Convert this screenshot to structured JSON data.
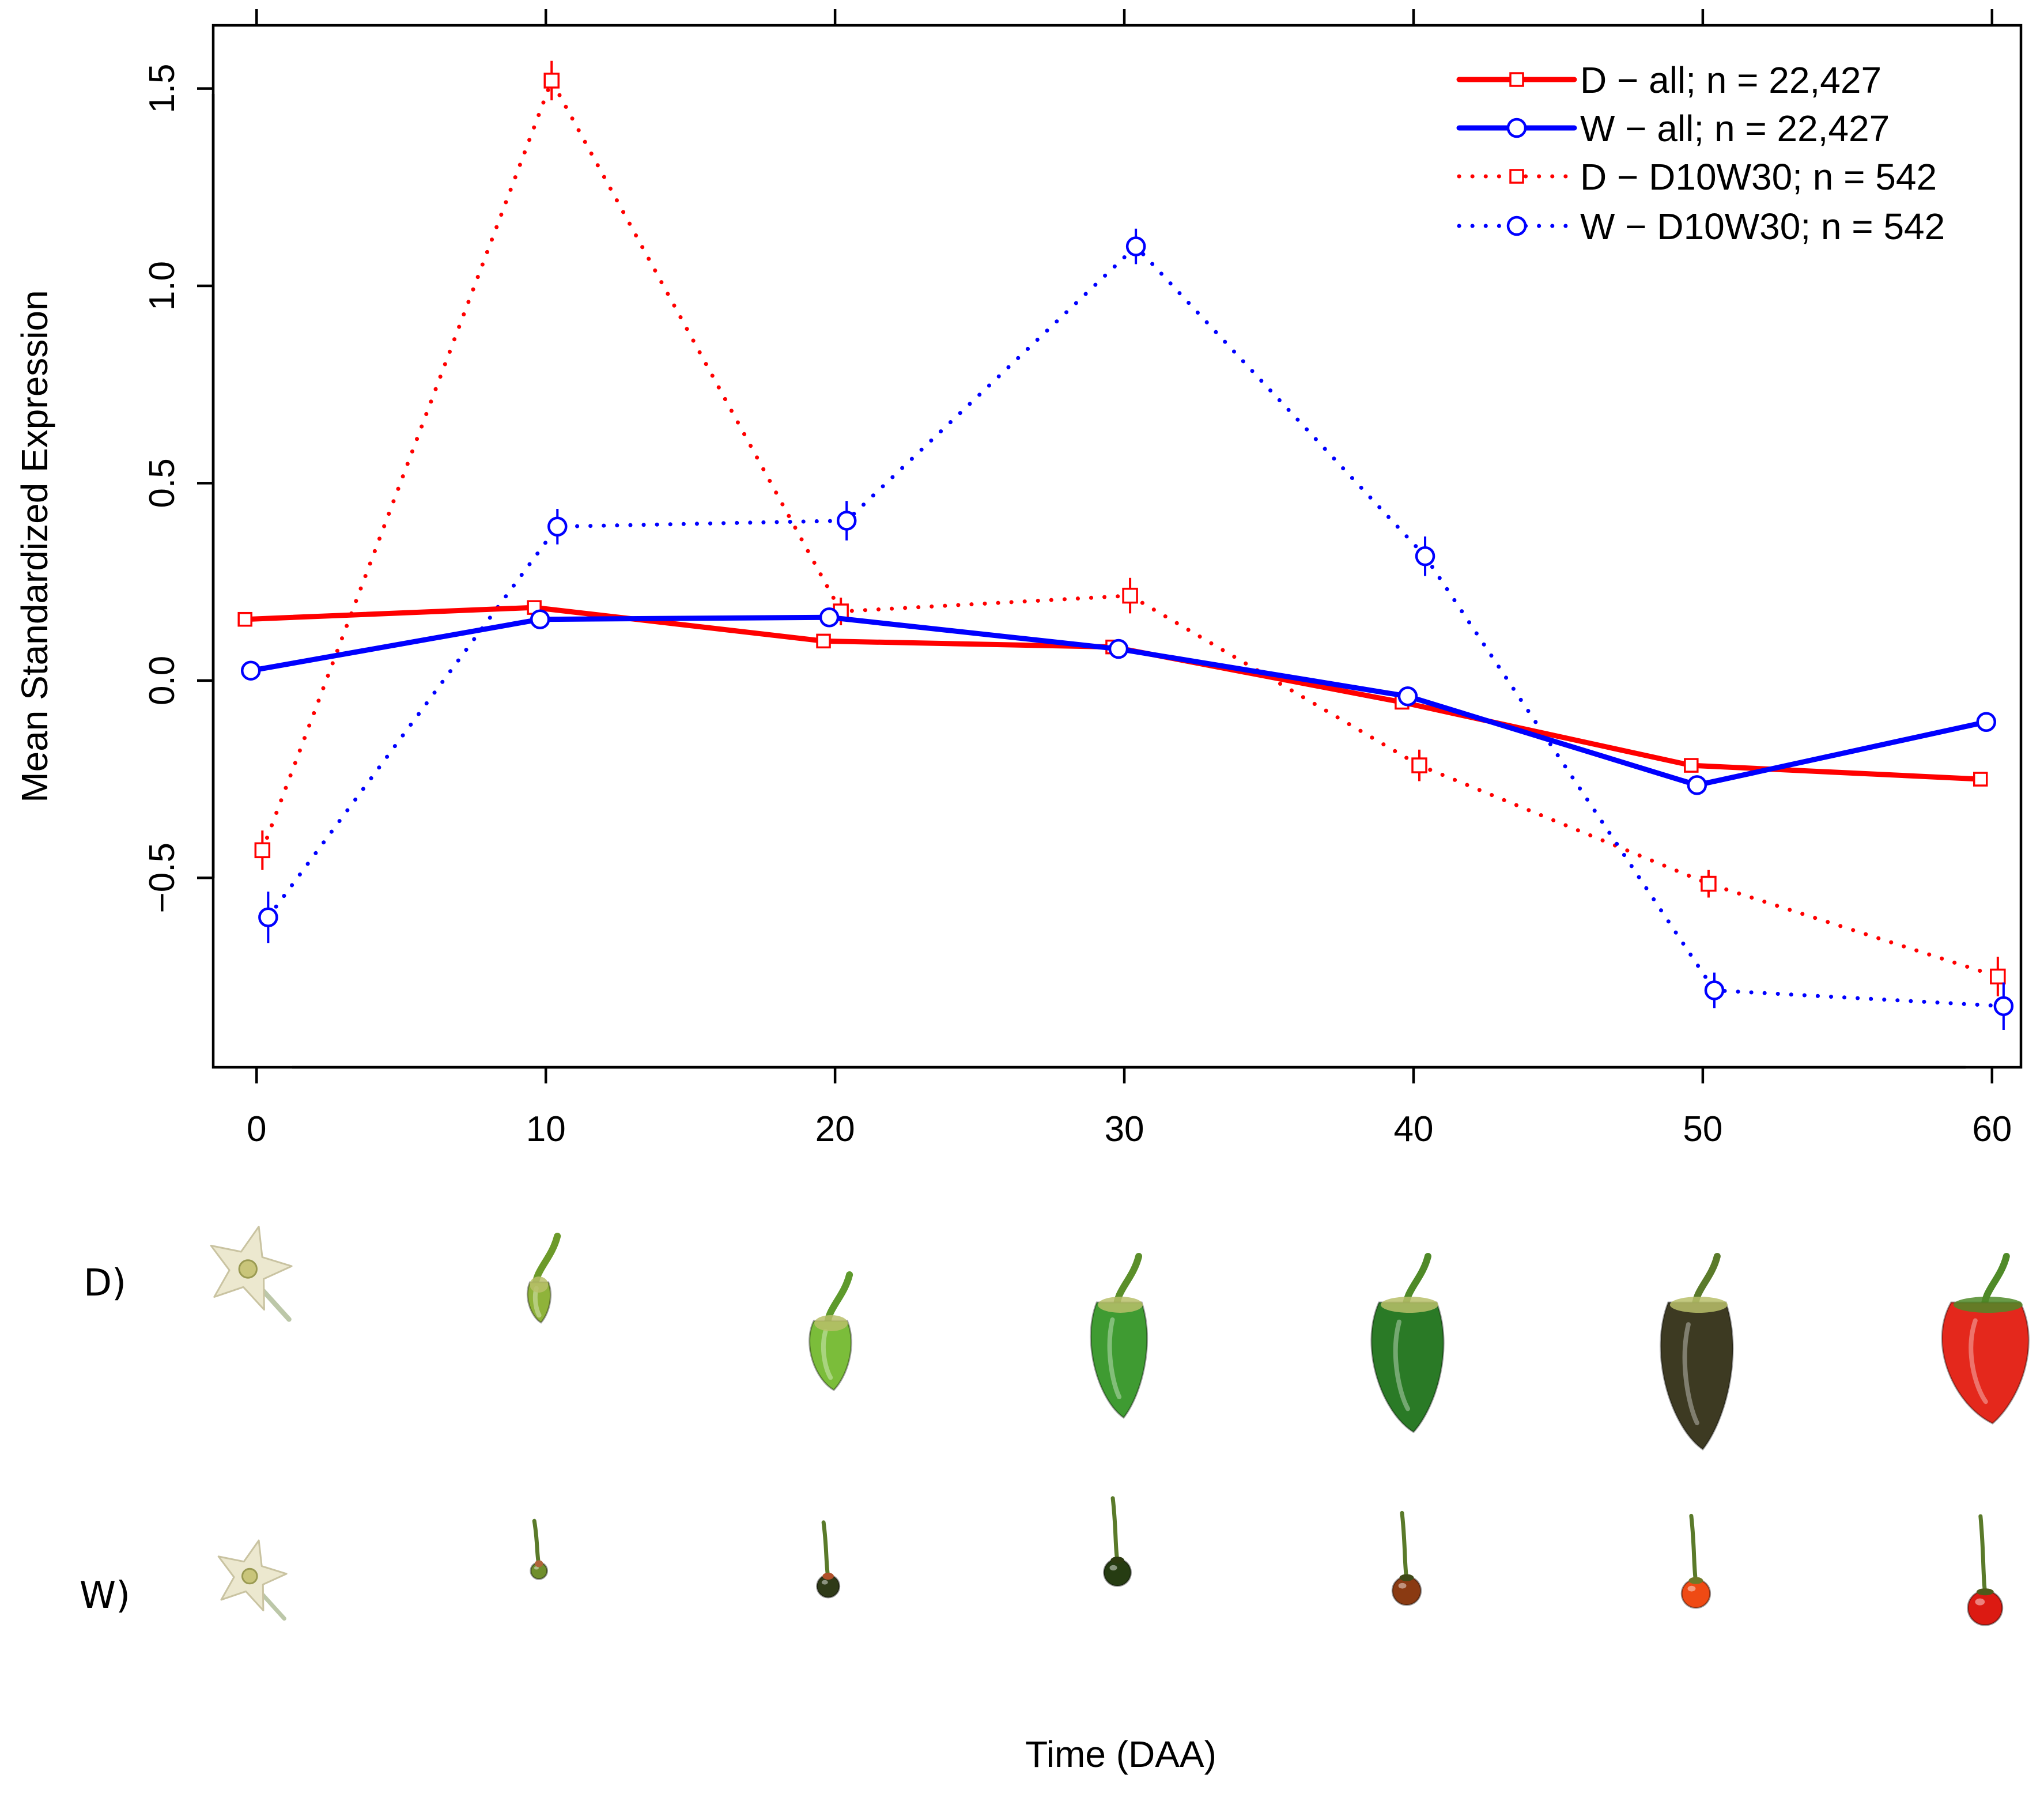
{
  "colors": {
    "D": "#ff0000",
    "W": "#0000ff"
  },
  "chart_data": {
    "type": "line",
    "title": "",
    "xlabel": "Time (DAA)",
    "ylabel": "Mean Standardized Expression",
    "xlim": [
      -1.5,
      61
    ],
    "ylim": [
      -0.98,
      1.66
    ],
    "xticks": [
      0,
      10,
      20,
      30,
      40,
      50,
      60
    ],
    "yticks": [
      -0.5,
      0.0,
      0.5,
      1.0,
      1.5
    ],
    "ytick_labels": [
      "−0.5",
      "0.0",
      "0.5",
      "1.0",
      "1.5"
    ],
    "legend_position": "top-right",
    "series": [
      {
        "name": "D − all; n = 22,427",
        "color": "#ff0000",
        "linestyle": "solid",
        "marker": "square",
        "x": [
          -0.4,
          9.6,
          19.6,
          29.6,
          39.6,
          49.6,
          59.6
        ],
        "y": [
          0.155,
          0.185,
          0.1,
          0.085,
          -0.055,
          -0.215,
          -0.25
        ],
        "err": [
          0,
          0,
          0,
          0,
          0,
          0,
          0
        ]
      },
      {
        "name": "W − all; n = 22,427",
        "color": "#0000ff",
        "linestyle": "solid",
        "marker": "circle",
        "x": [
          -0.2,
          9.8,
          19.8,
          29.8,
          39.8,
          49.8,
          59.8
        ],
        "y": [
          0.025,
          0.155,
          0.16,
          0.08,
          -0.04,
          -0.265,
          -0.105
        ],
        "err": [
          0,
          0,
          0,
          0,
          0,
          0,
          0
        ]
      },
      {
        "name": "D −  D10W30; n = 542",
        "color": "#ff0000",
        "linestyle": "dotted",
        "marker": "square",
        "x": [
          0.2,
          10.2,
          20.2,
          30.2,
          40.2,
          50.2,
          60.2
        ],
        "y": [
          -0.43,
          1.52,
          0.175,
          0.215,
          -0.215,
          -0.515,
          -0.75
        ],
        "err": [
          0.05,
          0.05,
          0.035,
          0.045,
          0.04,
          0.035,
          0.05
        ]
      },
      {
        "name": "W − D10W30; n = 542",
        "color": "#0000ff",
        "linestyle": "dotted",
        "marker": "circle",
        "x": [
          0.4,
          10.4,
          20.4,
          30.4,
          40.4,
          50.4,
          60.4
        ],
        "y": [
          -0.6,
          0.39,
          0.405,
          1.1,
          0.315,
          -0.785,
          -0.825
        ],
        "err": [
          0.065,
          0.045,
          0.05,
          0.045,
          0.05,
          0.045,
          0.06
        ]
      }
    ]
  },
  "panels": {
    "row_labels": [
      "D)",
      "W)"
    ],
    "D_fruits": [
      {
        "time": 0,
        "kind": "flower"
      },
      {
        "time": 10,
        "kind": "tiny-pepper",
        "fruit": "#8fb33a",
        "stem": "#6c9a2a"
      },
      {
        "time": 20,
        "kind": "small-pepper",
        "fruit": "#7bbd3a",
        "stem": "#5e9a2c"
      },
      {
        "time": 30,
        "kind": "pepper",
        "fruit": "#3f9b32",
        "stem": "#5b8f2a"
      },
      {
        "time": 40,
        "kind": "pepper",
        "fruit": "#2a7a26",
        "stem": "#4f8a28"
      },
      {
        "time": 50,
        "kind": "pepper",
        "fruit": "#3d3a22",
        "stem": "#5a7a2a"
      },
      {
        "time": 60,
        "kind": "pepper",
        "fruit": "#e4281c",
        "stem": "#4f8a28"
      }
    ],
    "W_fruits": [
      {
        "time": 0,
        "kind": "flower"
      },
      {
        "time": 10,
        "kind": "berry",
        "fruit": "#6f8e2c",
        "calyx": "#b0643a",
        "size": 0.55
      },
      {
        "time": 20,
        "kind": "berry",
        "fruit": "#2f3a18",
        "calyx": "#b0502a",
        "size": 0.75
      },
      {
        "time": 30,
        "kind": "berry",
        "fruit": "#263c12",
        "calyx": "#2c3a10",
        "size": 0.9
      },
      {
        "time": 40,
        "kind": "berry",
        "fruit": "#8a3a12",
        "calyx": "#3f4a18",
        "size": 0.95
      },
      {
        "time": 50,
        "kind": "berry",
        "fruit": "#ef4a14",
        "calyx": "#6e7a28",
        "size": 0.95
      },
      {
        "time": 60,
        "kind": "berry",
        "fruit": "#dc1a12",
        "calyx": "#4e5a1a",
        "size": 1.15
      }
    ]
  }
}
